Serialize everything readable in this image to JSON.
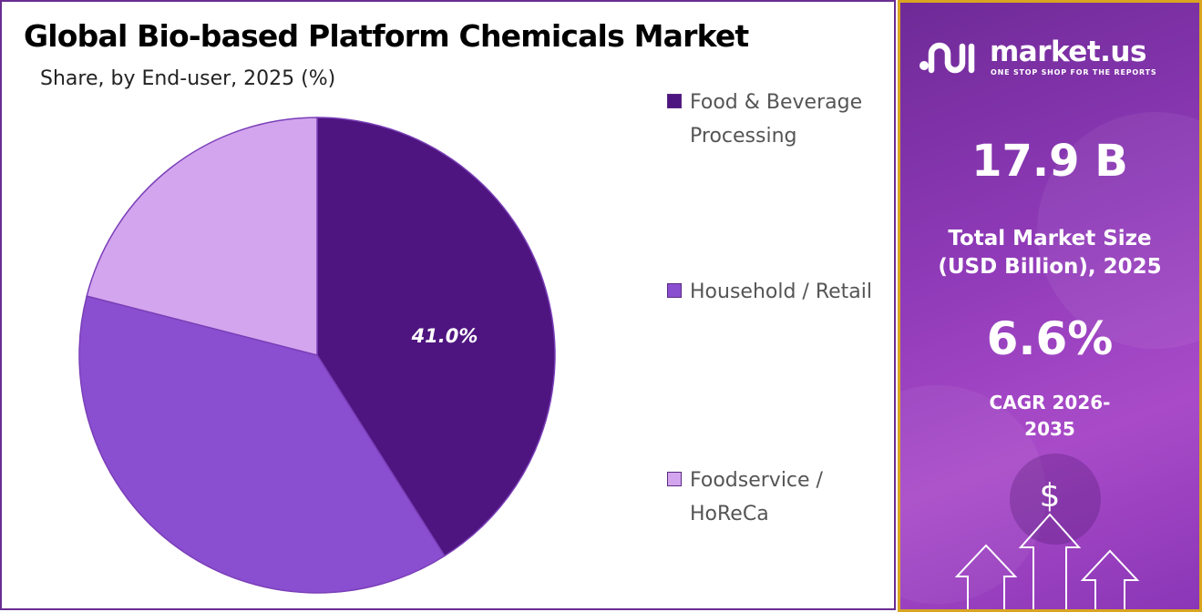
{
  "chart_data": {
    "type": "pie",
    "title": "Global Bio-based Platform Chemicals Market",
    "subtitle": "Share, by End-user, 2025 (%)",
    "categories": [
      "Food & Beverage Processing",
      "Household / Retail",
      "Foodservice / HoReCa"
    ],
    "values": [
      41.0,
      38.0,
      21.0
    ],
    "data_labels": [
      "41.0%",
      "",
      ""
    ],
    "colors": [
      "#4e1580",
      "#8a4fd0",
      "#d3a5ee"
    ],
    "legend_position": "right"
  },
  "legend": [
    {
      "label": "Food & Beverage Processing",
      "color": "#4e1580"
    },
    {
      "label": "Household / Retail",
      "color": "#8a4fd0"
    },
    {
      "label": "Foodservice / HoReCa",
      "color": "#d3a5ee"
    }
  ],
  "info_panel": {
    "brand": "market.us",
    "tagline": "ONE STOP SHOP FOR THE REPORTS",
    "market_size_value": "17.9 B",
    "market_size_label": "Total Market Size (USD Billion), 2025",
    "cagr_value": "6.6%",
    "cagr_label": "CAGR 2026-2035",
    "currency_symbol": "$",
    "accent_color": "#d9a521",
    "panel_color": "#8f3ab8"
  }
}
